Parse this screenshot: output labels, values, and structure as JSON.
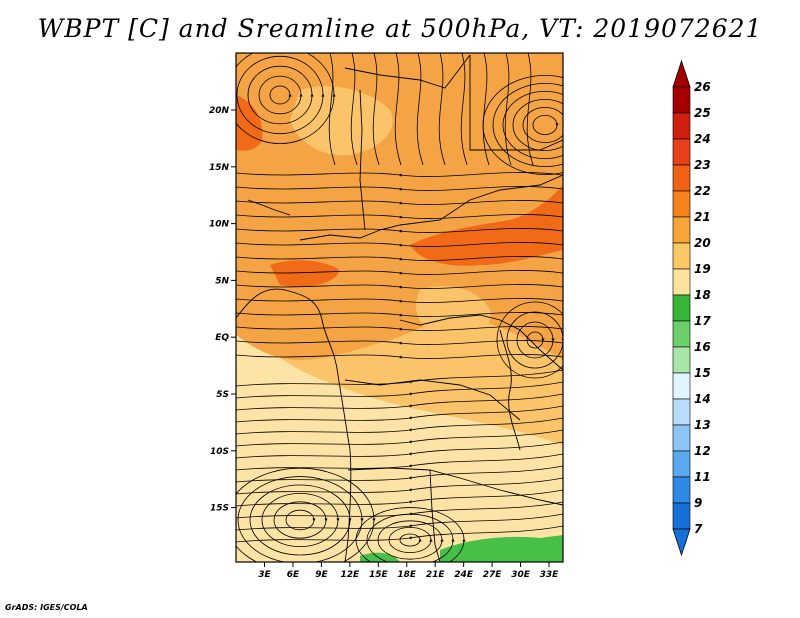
{
  "title": "WBPT [C] and Sreamline at 500hPa, VT: 2019072621",
  "credit": "GrADS: IGES/COLA",
  "y_axis_labels": [
    "20N",
    "15N",
    "10N",
    "5N",
    "EQ",
    "5S",
    "10S",
    "15S"
  ],
  "x_axis_labels": [
    "3E",
    "6E",
    "9E",
    "12E",
    "15E",
    "18E",
    "21E",
    "24E",
    "27E",
    "30E",
    "33E"
  ],
  "colorbar": {
    "labels": [
      "26",
      "25",
      "24",
      "23",
      "22",
      "21",
      "20",
      "19",
      "18",
      "17",
      "16",
      "15",
      "14",
      "13",
      "12",
      "11",
      "9",
      "7"
    ],
    "colors": [
      "#a50000",
      "#d01f0a",
      "#e8401a",
      "#f06015",
      "#f5821a",
      "#f7a43a",
      "#fbc866",
      "#fde2a0",
      "#36b536",
      "#6bd06b",
      "#a8e6a8",
      "#e0f5ff",
      "#b8dcfa",
      "#8cc4f5",
      "#5aa8ee",
      "#2f8ae4",
      "#1670da"
    ],
    "top_arrow_color": "#a50000",
    "bottom_arrow_color": "#1670da"
  },
  "shading": {
    "ocean_warm": "#f5a445",
    "deep_orange": "#f58a1e",
    "hot_core": "#f06a18",
    "warm_mid": "#fbc36a",
    "cool_south": "#fde3a6",
    "green_patch": "#48c048"
  }
}
